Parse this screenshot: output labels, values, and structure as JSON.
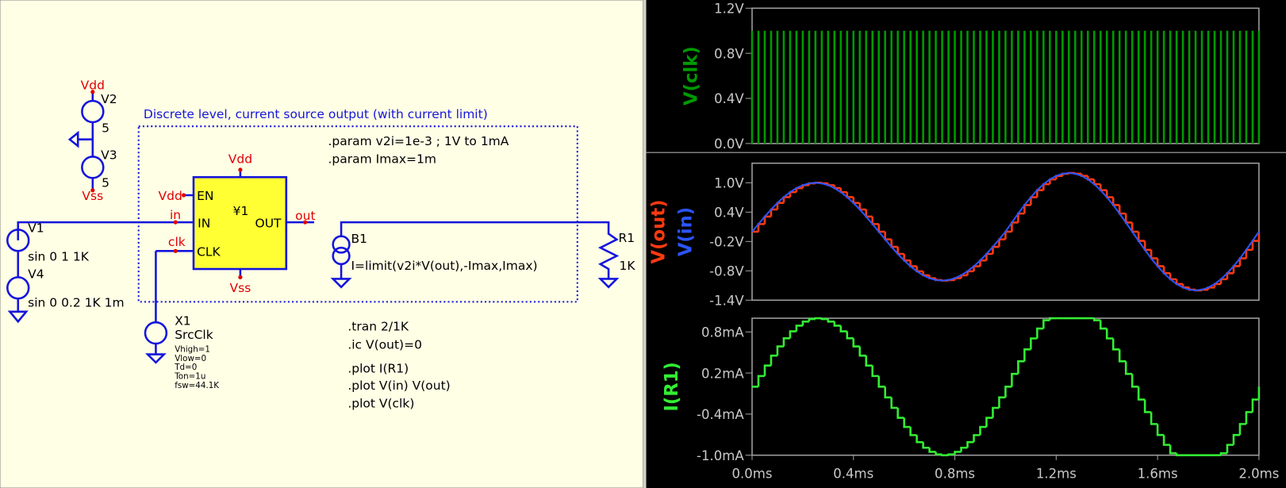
{
  "schematic": {
    "labels": [
      "Vdd",
      "V2",
      "5",
      "V3",
      "5",
      "Vss",
      "Discrete level, current source output (with current limit)",
      ".param v2i=1e-3 ; 1V to 1mA",
      ".param Imax=1m",
      "Vdd",
      "Vdd",
      "EN",
      "¥1",
      "in",
      "IN",
      "OUT",
      "out",
      "clk",
      "CLK",
      "Vss",
      "V1",
      "sin 0 1 1K",
      "V4",
      "sin 0 0.2 1K 1m",
      "B1",
      "I=limit(v2i*V(out),-Imax,Imax)",
      "R1",
      "1K",
      "X1",
      "SrcClk",
      "Vhigh=1",
      "Vlow=0",
      "Td=0",
      "Ton=1u",
      "fsw=44.1K",
      ".tran 2/1K",
      ".ic V(out)=0",
      ".plot I(R1)",
      ".plot V(in) V(out)",
      ".plot V(clk)"
    ]
  },
  "waveforms": {
    "x": [
      0,
      0.025,
      0.05,
      0.075,
      0.1,
      0.125,
      0.15,
      0.175,
      0.2,
      0.225,
      0.25,
      0.275,
      0.3,
      0.325,
      0.35,
      0.375,
      0.4,
      0.425,
      0.45,
      0.475,
      0.5,
      0.525,
      0.55,
      0.575,
      0.6,
      0.625,
      0.65,
      0.675,
      0.7,
      0.725,
      0.75,
      0.775,
      0.8,
      0.825,
      0.85,
      0.875,
      0.9,
      0.925,
      0.95,
      0.975,
      1,
      1.025,
      1.05,
      1.075,
      1.1,
      1.125,
      1.15,
      1.175,
      1.2,
      1.225,
      1.25,
      1.275,
      1.3,
      1.325,
      1.35,
      1.375,
      1.4,
      1.425,
      1.45,
      1.475,
      1.5,
      1.525,
      1.55,
      1.575,
      1.6,
      1.625,
      1.65,
      1.675,
      1.7,
      1.725,
      1.75,
      1.775,
      1.8,
      1.825,
      1.85,
      1.875,
      1.9,
      1.925,
      1.95,
      1.975,
      2
    ],
    "xlim": [
      0,
      2
    ],
    "xticks": [
      {
        "value": 0,
        "label": "0.0ms"
      },
      {
        "value": 0.4,
        "label": "0.4ms"
      },
      {
        "value": 0.8,
        "label": "0.8ms"
      },
      {
        "value": 1.2,
        "label": "1.2ms"
      },
      {
        "value": 1.6,
        "label": "1.6ms"
      },
      {
        "value": 2,
        "label": "2.0ms"
      }
    ],
    "panes": [
      {
        "ylim": [
          0,
          1.2
        ],
        "yticks": [
          {
            "value": 0,
            "label": "0.0V"
          },
          {
            "value": 0.4,
            "label": "0.4V"
          },
          {
            "value": 0.8,
            "label": "0.8V"
          },
          {
            "value": 1.2,
            "label": "1.2V"
          }
        ],
        "traces": [
          {
            "name": "V(clk)",
            "color": "#009a00",
            "style": "pulse",
            "values": [
              1,
              1,
              1,
              1,
              1,
              1,
              1,
              1,
              1,
              1,
              1,
              1,
              1,
              1,
              1,
              1,
              1,
              1,
              1,
              1,
              1,
              1,
              1,
              1,
              1,
              1,
              1,
              1,
              1,
              1,
              1,
              1,
              1,
              1,
              1,
              1,
              1,
              1,
              1,
              1,
              1,
              1,
              1,
              1,
              1,
              1,
              1,
              1,
              1,
              1,
              1,
              1,
              1,
              1,
              1,
              1,
              1,
              1,
              1,
              1,
              1,
              1,
              1,
              1,
              1,
              1,
              1,
              1,
              1,
              1,
              1,
              1,
              1,
              1,
              1,
              1,
              1,
              1,
              1,
              1,
              1
            ]
          }
        ]
      },
      {
        "ylim": [
          -1.4,
          1.4
        ],
        "yticks": [
          {
            "value": -1.4,
            "label": "-1.4V"
          },
          {
            "value": -0.8,
            "label": "-0.8V"
          },
          {
            "value": -0.2,
            "label": "-0.2V"
          },
          {
            "value": 0.4,
            "label": "0.4V"
          },
          {
            "value": 1.0,
            "label": "1.0V"
          }
        ],
        "traces": [
          {
            "name": "V(out)",
            "color": "#ff3a10",
            "style": "step",
            "values": [
              0,
              0.156,
              0.309,
              0.454,
              0.588,
              0.707,
              0.809,
              0.891,
              0.951,
              0.988,
              1,
              0.988,
              0.951,
              0.891,
              0.809,
              0.707,
              0.588,
              0.454,
              0.309,
              0.156,
              0,
              -0.156,
              -0.309,
              -0.454,
              -0.588,
              -0.707,
              -0.809,
              -0.891,
              -0.951,
              -0.988,
              -1,
              -0.988,
              -0.951,
              -0.891,
              -0.809,
              -0.707,
              -0.588,
              -0.454,
              -0.309,
              -0.156,
              0,
              0.187,
              0.371,
              0.545,
              0.705,
              0.849,
              0.971,
              1.069,
              1.141,
              1.185,
              1.2,
              1.185,
              1.141,
              1.069,
              0.971,
              0.849,
              0.705,
              0.545,
              0.371,
              0.187,
              0,
              -0.187,
              -0.371,
              -0.545,
              -0.705,
              -0.849,
              -0.971,
              -1.069,
              -1.141,
              -1.185,
              -1.2,
              -1.185,
              -1.141,
              -1.069,
              -0.971,
              -0.849,
              -0.705,
              -0.545,
              -0.371,
              -0.187,
              0
            ]
          },
          {
            "name": "V(in)",
            "color": "#2a55ff",
            "style": "line",
            "values": [
              0,
              0.156,
              0.309,
              0.454,
              0.588,
              0.707,
              0.809,
              0.891,
              0.951,
              0.988,
              1,
              0.988,
              0.951,
              0.891,
              0.809,
              0.707,
              0.588,
              0.454,
              0.309,
              0.156,
              0,
              -0.156,
              -0.309,
              -0.454,
              -0.588,
              -0.707,
              -0.809,
              -0.891,
              -0.951,
              -0.988,
              -1,
              -0.988,
              -0.951,
              -0.891,
              -0.809,
              -0.707,
              -0.588,
              -0.454,
              -0.309,
              -0.156,
              0,
              0.187,
              0.371,
              0.545,
              0.705,
              0.849,
              0.971,
              1.069,
              1.141,
              1.185,
              1.2,
              1.185,
              1.141,
              1.069,
              0.971,
              0.849,
              0.705,
              0.545,
              0.371,
              0.187,
              0,
              -0.187,
              -0.371,
              -0.545,
              -0.705,
              -0.849,
              -0.971,
              -1.069,
              -1.141,
              -1.185,
              -1.2,
              -1.185,
              -1.141,
              -1.069,
              -0.971,
              -0.849,
              -0.705,
              -0.545,
              -0.371,
              -0.187,
              0
            ]
          }
        ]
      },
      {
        "ylim": [
          -1.0,
          1.0
        ],
        "yticks": [
          {
            "value": -1.0,
            "label": "-1.0mA"
          },
          {
            "value": -0.4,
            "label": "-0.4mA"
          },
          {
            "value": 0.2,
            "label": "0.2mA"
          },
          {
            "value": 0.8,
            "label": "0.8mA"
          }
        ],
        "traces": [
          {
            "name": "I(R1)",
            "color": "#33ee33",
            "style": "step",
            "values": [
              0,
              0.156,
              0.309,
              0.454,
              0.588,
              0.707,
              0.809,
              0.891,
              0.951,
              0.988,
              1,
              0.988,
              0.951,
              0.891,
              0.809,
              0.707,
              0.588,
              0.454,
              0.309,
              0.156,
              0,
              -0.156,
              -0.309,
              -0.454,
              -0.588,
              -0.707,
              -0.809,
              -0.891,
              -0.951,
              -0.988,
              -1,
              -0.988,
              -0.951,
              -0.891,
              -0.809,
              -0.707,
              -0.588,
              -0.454,
              -0.309,
              -0.156,
              0,
              0.187,
              0.371,
              0.545,
              0.705,
              0.849,
              0.971,
              1,
              1,
              1,
              1,
              1,
              1,
              1,
              0.971,
              0.849,
              0.705,
              0.545,
              0.371,
              0.187,
              0,
              -0.187,
              -0.371,
              -0.545,
              -0.705,
              -0.849,
              -0.971,
              -1,
              -1,
              -1,
              -1,
              -1,
              -1,
              -1,
              -0.971,
              -0.849,
              -0.705,
              -0.545,
              -0.371,
              -0.187,
              0
            ]
          }
        ]
      }
    ]
  }
}
